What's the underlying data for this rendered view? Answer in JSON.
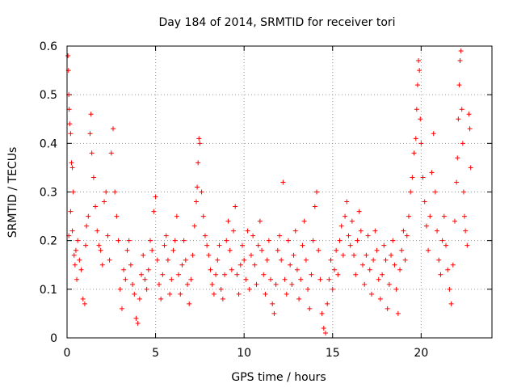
{
  "chart_data": {
    "type": "scatter",
    "title": "Day 184 of 2014, SRMTID for receiver tori",
    "xlabel": "GPS time / hours",
    "ylabel": "SRMTID / TECUs",
    "xlim": [
      0,
      24
    ],
    "ylim": [
      0,
      0.6
    ],
    "xticks": [
      0,
      5,
      10,
      15,
      20
    ],
    "xtick_labels": [
      "0",
      "5",
      "10",
      "15",
      "20"
    ],
    "yticks": [
      0,
      0.1,
      0.2,
      0.3,
      0.4,
      0.5,
      0.6
    ],
    "ytick_labels": [
      "0",
      "0.1",
      "0.2",
      "0.3",
      "0.4",
      "0.5",
      "0.6"
    ],
    "grid": true,
    "marker": "+",
    "series_color": "#ff0000",
    "series": [
      {
        "name": "SRMTID",
        "points": [
          [
            0.05,
            0.58
          ],
          [
            0.08,
            0.55
          ],
          [
            0.1,
            0.5
          ],
          [
            0.12,
            0.47
          ],
          [
            0.15,
            0.44
          ],
          [
            0.2,
            0.42
          ],
          [
            0.25,
            0.36
          ],
          [
            0.3,
            0.35
          ],
          [
            0.35,
            0.3
          ],
          [
            0.1,
            0.21
          ],
          [
            0.2,
            0.26
          ],
          [
            0.3,
            0.22
          ],
          [
            0.4,
            0.17
          ],
          [
            0.45,
            0.15
          ],
          [
            0.5,
            0.18
          ],
          [
            0.55,
            0.12
          ],
          [
            0.6,
            0.2
          ],
          [
            0.7,
            0.16
          ],
          [
            0.8,
            0.14
          ],
          [
            0.9,
            0.08
          ],
          [
            1.0,
            0.07
          ],
          [
            1.05,
            0.19
          ],
          [
            1.1,
            0.23
          ],
          [
            1.2,
            0.25
          ],
          [
            1.3,
            0.42
          ],
          [
            1.35,
            0.46
          ],
          [
            1.4,
            0.38
          ],
          [
            1.5,
            0.33
          ],
          [
            1.6,
            0.27
          ],
          [
            1.7,
            0.22
          ],
          [
            1.8,
            0.19
          ],
          [
            1.9,
            0.18
          ],
          [
            2.0,
            0.15
          ],
          [
            2.1,
            0.28
          ],
          [
            2.2,
            0.3
          ],
          [
            2.3,
            0.21
          ],
          [
            2.4,
            0.16
          ],
          [
            2.5,
            0.38
          ],
          [
            2.6,
            0.43
          ],
          [
            2.7,
            0.3
          ],
          [
            2.8,
            0.25
          ],
          [
            2.9,
            0.2
          ],
          [
            3.0,
            0.1
          ],
          [
            3.1,
            0.06
          ],
          [
            3.2,
            0.14
          ],
          [
            3.3,
            0.12
          ],
          [
            3.4,
            0.18
          ],
          [
            3.5,
            0.2
          ],
          [
            3.6,
            0.15
          ],
          [
            3.7,
            0.11
          ],
          [
            3.8,
            0.09
          ],
          [
            3.9,
            0.04
          ],
          [
            4.0,
            0.03
          ],
          [
            4.1,
            0.08
          ],
          [
            4.2,
            0.13
          ],
          [
            4.3,
            0.17
          ],
          [
            4.4,
            0.12
          ],
          [
            4.5,
            0.1
          ],
          [
            4.6,
            0.14
          ],
          [
            4.7,
            0.2
          ],
          [
            4.8,
            0.18
          ],
          [
            4.9,
            0.26
          ],
          [
            5.0,
            0.29
          ],
          [
            5.1,
            0.16
          ],
          [
            5.2,
            0.11
          ],
          [
            5.3,
            0.08
          ],
          [
            5.4,
            0.13
          ],
          [
            5.5,
            0.19
          ],
          [
            5.6,
            0.21
          ],
          [
            5.7,
            0.16
          ],
          [
            5.8,
            0.09
          ],
          [
            5.9,
            0.12
          ],
          [
            6.0,
            0.18
          ],
          [
            6.1,
            0.2
          ],
          [
            6.2,
            0.25
          ],
          [
            6.3,
            0.13
          ],
          [
            6.4,
            0.09
          ],
          [
            6.5,
            0.15
          ],
          [
            6.6,
            0.2
          ],
          [
            6.7,
            0.16
          ],
          [
            6.8,
            0.11
          ],
          [
            6.9,
            0.07
          ],
          [
            7.0,
            0.12
          ],
          [
            7.1,
            0.17
          ],
          [
            7.2,
            0.23
          ],
          [
            7.3,
            0.28
          ],
          [
            7.35,
            0.31
          ],
          [
            7.4,
            0.36
          ],
          [
            7.45,
            0.41
          ],
          [
            7.5,
            0.4
          ],
          [
            7.6,
            0.3
          ],
          [
            7.7,
            0.25
          ],
          [
            7.8,
            0.21
          ],
          [
            7.9,
            0.19
          ],
          [
            8.0,
            0.17
          ],
          [
            8.1,
            0.14
          ],
          [
            8.2,
            0.11
          ],
          [
            8.3,
            0.09
          ],
          [
            8.4,
            0.13
          ],
          [
            8.5,
            0.16
          ],
          [
            8.6,
            0.19
          ],
          [
            8.7,
            0.1
          ],
          [
            8.8,
            0.08
          ],
          [
            8.9,
            0.13
          ],
          [
            9.0,
            0.2
          ],
          [
            9.1,
            0.24
          ],
          [
            9.2,
            0.18
          ],
          [
            9.3,
            0.14
          ],
          [
            9.4,
            0.22
          ],
          [
            9.5,
            0.27
          ],
          [
            9.6,
            0.13
          ],
          [
            9.7,
            0.09
          ],
          [
            9.8,
            0.15
          ],
          [
            9.9,
            0.19
          ],
          [
            10.0,
            0.16
          ],
          [
            10.1,
            0.12
          ],
          [
            10.2,
            0.22
          ],
          [
            10.3,
            0.1
          ],
          [
            10.4,
            0.17
          ],
          [
            10.5,
            0.21
          ],
          [
            10.6,
            0.15
          ],
          [
            10.7,
            0.11
          ],
          [
            10.8,
            0.19
          ],
          [
            10.9,
            0.24
          ],
          [
            11.0,
            0.18
          ],
          [
            11.1,
            0.13
          ],
          [
            11.2,
            0.09
          ],
          [
            11.3,
            0.16
          ],
          [
            11.4,
            0.2
          ],
          [
            11.5,
            0.12
          ],
          [
            11.6,
            0.07
          ],
          [
            11.7,
            0.05
          ],
          [
            11.8,
            0.11
          ],
          [
            11.9,
            0.18
          ],
          [
            12.0,
            0.21
          ],
          [
            12.1,
            0.16
          ],
          [
            12.2,
            0.32
          ],
          [
            12.3,
            0.12
          ],
          [
            12.4,
            0.09
          ],
          [
            12.5,
            0.2
          ],
          [
            12.6,
            0.15
          ],
          [
            12.7,
            0.11
          ],
          [
            12.8,
            0.17
          ],
          [
            12.9,
            0.22
          ],
          [
            13.0,
            0.14
          ],
          [
            13.1,
            0.08
          ],
          [
            13.2,
            0.12
          ],
          [
            13.3,
            0.19
          ],
          [
            13.4,
            0.24
          ],
          [
            13.5,
            0.16
          ],
          [
            13.6,
            0.1
          ],
          [
            13.7,
            0.06
          ],
          [
            13.8,
            0.13
          ],
          [
            13.9,
            0.2
          ],
          [
            14.0,
            0.27
          ],
          [
            14.1,
            0.3
          ],
          [
            14.2,
            0.18
          ],
          [
            14.3,
            0.12
          ],
          [
            14.4,
            0.05
          ],
          [
            14.5,
            0.02
          ],
          [
            14.6,
            0.01
          ],
          [
            14.7,
            0.07
          ],
          [
            14.8,
            0.12
          ],
          [
            14.9,
            0.16
          ],
          [
            15.0,
            0.1
          ],
          [
            15.1,
            0.14
          ],
          [
            15.2,
            0.18
          ],
          [
            15.3,
            0.13
          ],
          [
            15.4,
            0.2
          ],
          [
            15.5,
            0.23
          ],
          [
            15.6,
            0.17
          ],
          [
            15.7,
            0.25
          ],
          [
            15.8,
            0.28
          ],
          [
            15.9,
            0.21
          ],
          [
            16.0,
            0.19
          ],
          [
            16.1,
            0.24
          ],
          [
            16.2,
            0.17
          ],
          [
            16.3,
            0.13
          ],
          [
            16.4,
            0.2
          ],
          [
            16.5,
            0.26
          ],
          [
            16.6,
            0.22
          ],
          [
            16.7,
            0.15
          ],
          [
            16.8,
            0.11
          ],
          [
            16.9,
            0.17
          ],
          [
            17.0,
            0.21
          ],
          [
            17.1,
            0.14
          ],
          [
            17.2,
            0.09
          ],
          [
            17.3,
            0.16
          ],
          [
            17.4,
            0.22
          ],
          [
            17.5,
            0.18
          ],
          [
            17.6,
            0.12
          ],
          [
            17.7,
            0.08
          ],
          [
            17.8,
            0.13
          ],
          [
            17.9,
            0.19
          ],
          [
            18.0,
            0.16
          ],
          [
            18.1,
            0.06
          ],
          [
            18.2,
            0.11
          ],
          [
            18.3,
            0.17
          ],
          [
            18.4,
            0.2
          ],
          [
            18.5,
            0.15
          ],
          [
            18.6,
            0.1
          ],
          [
            18.7,
            0.05
          ],
          [
            18.8,
            0.14
          ],
          [
            18.9,
            0.18
          ],
          [
            19.0,
            0.22
          ],
          [
            19.1,
            0.16
          ],
          [
            19.2,
            0.21
          ],
          [
            19.3,
            0.25
          ],
          [
            19.4,
            0.3
          ],
          [
            19.5,
            0.33
          ],
          [
            19.6,
            0.38
          ],
          [
            19.7,
            0.41
          ],
          [
            19.75,
            0.47
          ],
          [
            19.8,
            0.52
          ],
          [
            19.85,
            0.57
          ],
          [
            19.9,
            0.55
          ],
          [
            19.95,
            0.45
          ],
          [
            20.0,
            0.4
          ],
          [
            20.1,
            0.33
          ],
          [
            20.2,
            0.28
          ],
          [
            20.3,
            0.23
          ],
          [
            20.4,
            0.18
          ],
          [
            20.5,
            0.25
          ],
          [
            20.6,
            0.34
          ],
          [
            20.7,
            0.42
          ],
          [
            20.8,
            0.3
          ],
          [
            20.9,
            0.22
          ],
          [
            21.0,
            0.16
          ],
          [
            21.1,
            0.13
          ],
          [
            21.2,
            0.2
          ],
          [
            21.3,
            0.25
          ],
          [
            21.4,
            0.19
          ],
          [
            21.5,
            0.14
          ],
          [
            21.6,
            0.1
          ],
          [
            21.7,
            0.07
          ],
          [
            21.8,
            0.15
          ],
          [
            21.9,
            0.24
          ],
          [
            22.0,
            0.32
          ],
          [
            22.05,
            0.37
          ],
          [
            22.1,
            0.45
          ],
          [
            22.15,
            0.52
          ],
          [
            22.2,
            0.57
          ],
          [
            22.25,
            0.59
          ],
          [
            22.3,
            0.47
          ],
          [
            22.35,
            0.4
          ],
          [
            22.4,
            0.3
          ],
          [
            22.45,
            0.25
          ],
          [
            22.5,
            0.22
          ],
          [
            22.6,
            0.19
          ],
          [
            22.7,
            0.46
          ],
          [
            22.75,
            0.43
          ],
          [
            22.8,
            0.35
          ]
        ]
      }
    ]
  }
}
